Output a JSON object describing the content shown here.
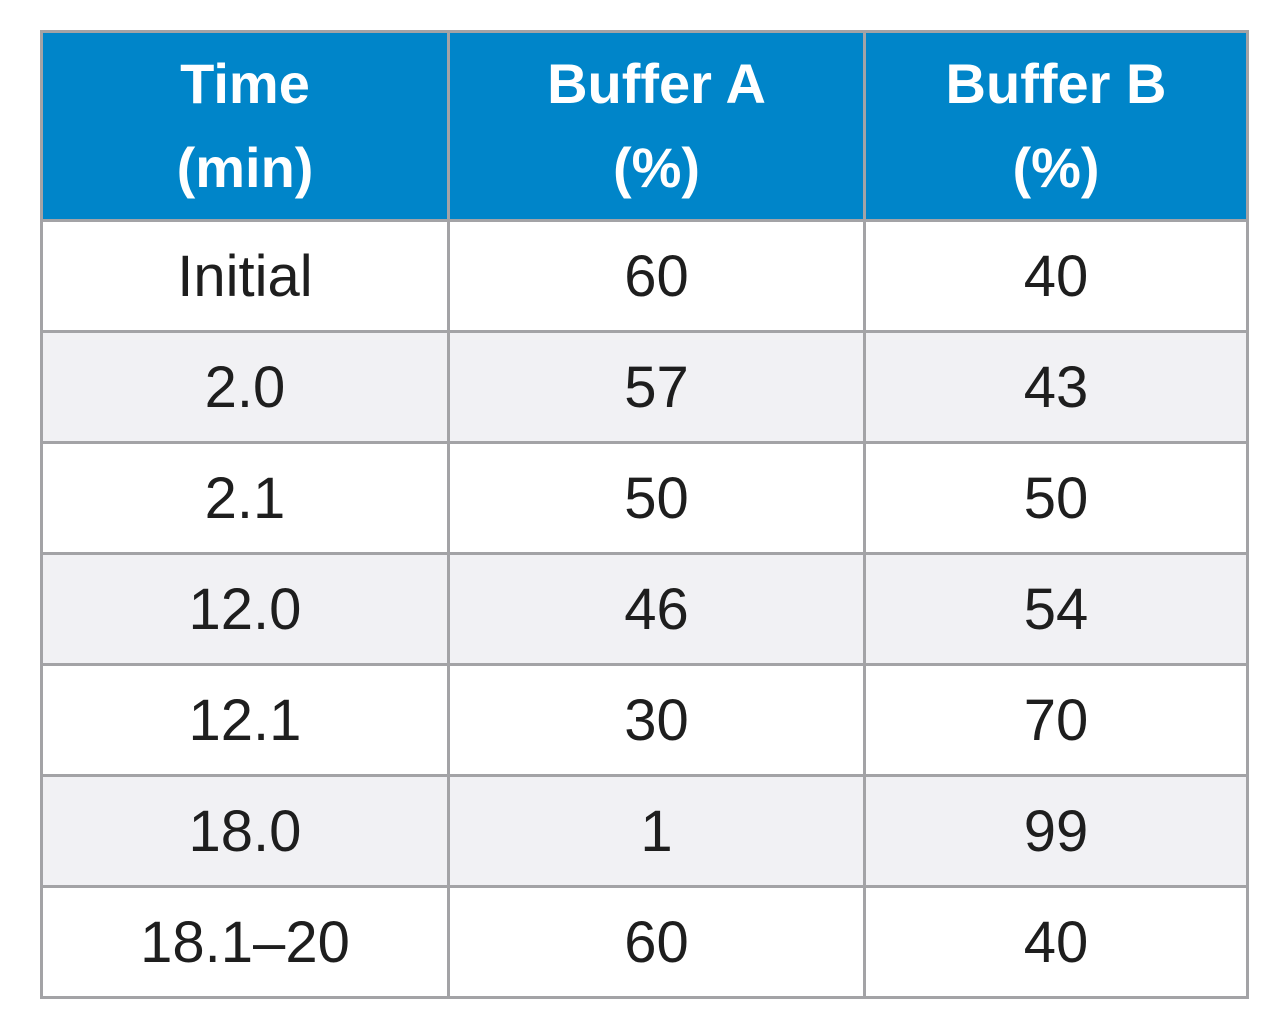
{
  "table": {
    "headers": [
      {
        "line1": "Time",
        "line2": "(min)"
      },
      {
        "line1": "Buffer A",
        "line2": "(%)"
      },
      {
        "line1": "Buffer B",
        "line2": "(%)"
      }
    ],
    "rows": [
      {
        "time": "Initial",
        "buffer_a": "60",
        "buffer_b": "40"
      },
      {
        "time": "2.0",
        "buffer_a": "57",
        "buffer_b": "43"
      },
      {
        "time": "2.1",
        "buffer_a": "50",
        "buffer_b": "50"
      },
      {
        "time": "12.0",
        "buffer_a": "46",
        "buffer_b": "54"
      },
      {
        "time": "12.1",
        "buffer_a": "30",
        "buffer_b": "70"
      },
      {
        "time": "18.0",
        "buffer_a": "1",
        "buffer_b": "99"
      },
      {
        "time": "18.1–20",
        "buffer_a": "60",
        "buffer_b": "40"
      }
    ]
  },
  "colors": {
    "header_background": "#0085c9",
    "header_text": "#ffffff",
    "stripe_background": "#f1f1f4",
    "border": "#a3a3a6"
  }
}
